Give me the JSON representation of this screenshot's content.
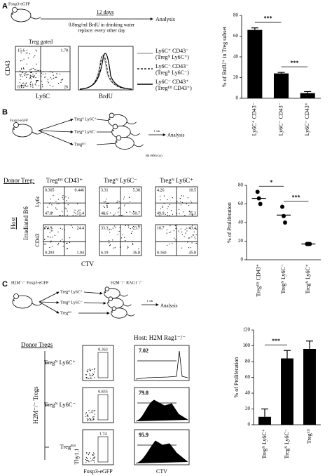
{
  "panel_a": {
    "letter": "A",
    "mouse": "Foxp3-eGFP",
    "duration": "12 days",
    "treatment": "0.8mg/ml BrdU in drinking water",
    "schedule": "replace: every other day",
    "readout": "Analysis",
    "gate": "Treg gated",
    "facs": {
      "quadrants": [
        "15.6",
        "1.78",
        "65.7",
        "26"
      ],
      "x_label": "Ly6C",
      "y_label": "CD43"
    },
    "hist_x_label": "BrdU",
    "legend": [
      {
        "label": "Ly6C⁺ CD43⁻",
        "subset": "(Tregᴺ Ly6C⁺)"
      },
      {
        "label": "Ly6C⁻ CD43⁻",
        "subset": "(Tregᴺ Ly6C⁻)"
      },
      {
        "label": "Ly6C⁻ CD43⁺",
        "subset": "(Tregᴱᶠᶠ CD43⁺)"
      }
    ],
    "chart": {
      "type": "bar",
      "y_label": "% of BrdU⁺ in Treg subset",
      "categories": [
        "Ly6C⁺ CD43⁻",
        "Ly6C⁻ CD43⁻",
        "Ly6C⁻ CD43⁺"
      ],
      "values": [
        66,
        24,
        5
      ],
      "errors": [
        2,
        1,
        1.5
      ],
      "color": "#000000",
      "ylim": [
        0,
        80
      ],
      "yticks": [
        0,
        20,
        40,
        60,
        80
      ],
      "significance": [
        {
          "label": "***",
          "from": 0,
          "to": 1
        },
        {
          "label": "***",
          "from": 1,
          "to": 2
        }
      ]
    }
  },
  "panel_b": {
    "letter": "B",
    "mouse": "Foxp3-eGFP",
    "subsets": [
      "Tregᴺ Ly6C⁺",
      "Tregᴺ Ly6C⁻",
      "Tregᴱᶠᶠ"
    ],
    "interval": "1 wk",
    "readout": "Analysis",
    "host": "B6 (900cGy)",
    "donor_label": "Donor Treg:",
    "columns": [
      "Tregᴱᶠᶠ CD43⁺",
      "Tregᴺ Ly6C⁻",
      "Tregᴺ Ly6C⁺"
    ],
    "host_label": "Host",
    "host_strain": "Irradiated B6",
    "row_labels": [
      "Ly6c",
      "CD43"
    ],
    "x_label": "CTV",
    "facs": [
      [
        [
          "0.305",
          "0.446",
          "47.8",
          "51.4"
        ],
        [
          "3.31",
          "5.38",
          "40.6",
          "50.7"
        ],
        [
          "4.26",
          "10.5",
          "49.9",
          "35.3"
        ]
      ],
      [
        [
          "74.3",
          "24.4",
          "0.293",
          "1.04"
        ],
        [
          "33.3",
          "23.7",
          "6.19",
          "36.8"
        ],
        [
          "10.7",
          "43.4",
          "0.160",
          "45.8"
        ]
      ]
    ],
    "chart": {
      "type": "dot",
      "y_label": "% of Proliferation",
      "categories": [
        "Tregᴱᶠᶠ CD43⁺",
        "Tregᴺ Ly6C⁻",
        "Tregᴺ Ly6C⁺"
      ],
      "points": [
        [
          73,
          66,
          60
        ],
        [
          57,
          47,
          40
        ],
        [
          17,
          17,
          17
        ]
      ],
      "means": [
        66,
        48,
        17
      ],
      "color": "#000000",
      "ylim": [
        0,
        80
      ],
      "yticks": [
        0,
        20,
        40,
        60,
        80
      ],
      "significance": [
        {
          "label": "*",
          "from": 0,
          "to": 1
        },
        {
          "label": "***",
          "from": 1,
          "to": 2
        }
      ]
    }
  },
  "panel_c": {
    "letter": "C",
    "donor_mouse": "H2M⁻/⁻ Foxp3-eGFP",
    "host_mouse": "H2M⁻/⁻ RAG1⁻/⁻",
    "subsets": [
      "Tregᴺ Ly6C⁺",
      "Tregᴺ Ly6C⁻",
      "Tregᴱᶠᶠ"
    ],
    "interval": "1 wk",
    "readout": "Analysis",
    "host_label": "Host: H2M Rag1⁻/⁻",
    "donor_label": "Donor Tregs",
    "group_label": "H2M⁻/⁻ Tregs",
    "rows": [
      {
        "label": "Tregᴺ Ly6C⁺",
        "gate": "0.363",
        "proliferation": "7.02"
      },
      {
        "label": "Tregᴺ Ly6C⁻",
        "gate": "0.835",
        "proliferation": "79.8"
      },
      {
        "label": "Tregᴱᶠᶠ",
        "gate": "1.74",
        "proliferation": "95.9"
      }
    ],
    "y_label": "Thy1.1",
    "x_labels": [
      "Foxp3-eGFP",
      "CTV"
    ],
    "chart": {
      "type": "bar",
      "y_label": "% of Proliferation",
      "categories": [
        "Tregᴺ Ly6C⁺",
        "Tregᴺ Ly6C⁻",
        "Tregᴱᶠᶠ"
      ],
      "values": [
        10,
        84,
        96
      ],
      "errors": [
        10,
        10,
        10
      ],
      "color": "#000000",
      "ylim": [
        0,
        120
      ],
      "yticks": [
        0,
        20,
        40,
        60,
        80,
        100,
        120
      ],
      "significance": [
        {
          "label": "***",
          "from": 0,
          "to": 1
        }
      ]
    }
  }
}
